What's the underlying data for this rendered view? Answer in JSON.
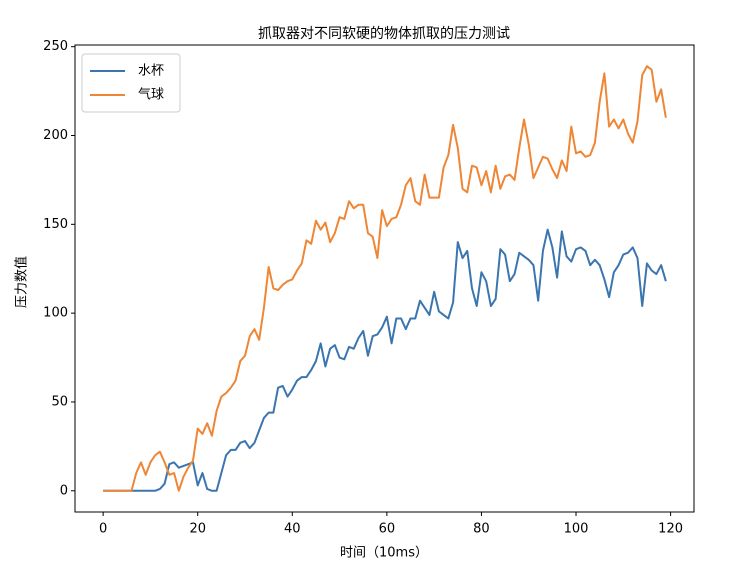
{
  "chart_data": {
    "type": "line",
    "title": "抓取器对不同软硬的物体抓取的压力测试",
    "x_label": "时间（10ms）",
    "y_label": "压力数值",
    "x": [
      0,
      1,
      2,
      3,
      4,
      5,
      6,
      7,
      8,
      9,
      10,
      11,
      12,
      13,
      14,
      15,
      16,
      17,
      18,
      19,
      20,
      21,
      22,
      23,
      24,
      25,
      26,
      27,
      28,
      29,
      30,
      31,
      32,
      33,
      34,
      35,
      36,
      37,
      38,
      39,
      40,
      41,
      42,
      43,
      44,
      45,
      46,
      47,
      48,
      49,
      50,
      51,
      52,
      53,
      54,
      55,
      56,
      57,
      58,
      59,
      60,
      61,
      62,
      63,
      64,
      65,
      66,
      67,
      68,
      69,
      70,
      71,
      72,
      73,
      74,
      75,
      76,
      77,
      78,
      79,
      80,
      81,
      82,
      83,
      84,
      85,
      86,
      87,
      88,
      89,
      90,
      91,
      92,
      93,
      94,
      95,
      96,
      97,
      98,
      99,
      100,
      101,
      102,
      103,
      104,
      105,
      106,
      107,
      108,
      109,
      110,
      111,
      112,
      113,
      114,
      115,
      116,
      117,
      118,
      119
    ],
    "series": [
      {
        "name": "水杯",
        "color": "#3b75af",
        "values": [
          0,
          0,
          0,
          0,
          0,
          0,
          0,
          0,
          0,
          0,
          0,
          0,
          1,
          4,
          15,
          16,
          13,
          14,
          15,
          16,
          3,
          10,
          1,
          0,
          0,
          10,
          20,
          23,
          23,
          27,
          28,
          24,
          27,
          34,
          41,
          44,
          44,
          58,
          59,
          53,
          57,
          62,
          64,
          64,
          68,
          73,
          83,
          70,
          80,
          82,
          75,
          74,
          81,
          80,
          86,
          90,
          76,
          87,
          88,
          92,
          98,
          83,
          97,
          97,
          91,
          97,
          97,
          107,
          103,
          99,
          112,
          101,
          99,
          97,
          106,
          140,
          131,
          135,
          114,
          104,
          123,
          118,
          104,
          108,
          136,
          133,
          118,
          122,
          134,
          132,
          130,
          127,
          107,
          135,
          147,
          137,
          120,
          146,
          132,
          129,
          136,
          137,
          135,
          127,
          130,
          127,
          119,
          109,
          123,
          127,
          133,
          134,
          137,
          131,
          104,
          128,
          124,
          122,
          127,
          118
        ]
      },
      {
        "name": "气球",
        "color": "#ee8636",
        "values": [
          0,
          0,
          0,
          0,
          0,
          0,
          0,
          10,
          16,
          9,
          16,
          20,
          22,
          16,
          9,
          10,
          0,
          8,
          13,
          17,
          35,
          32,
          38,
          31,
          45,
          53,
          55,
          58,
          62,
          73,
          76,
          87,
          91,
          85,
          103,
          126,
          114,
          113,
          116,
          118,
          119,
          124,
          128,
          141,
          139,
          152,
          147,
          151,
          140,
          145,
          154,
          153,
          163,
          159,
          161,
          161,
          145,
          143,
          131,
          158,
          149,
          153,
          154,
          161,
          172,
          176,
          163,
          161,
          178,
          165,
          165,
          165,
          182,
          189,
          206,
          193,
          170,
          168,
          183,
          182,
          172,
          180,
          168,
          183,
          170,
          177,
          178,
          175,
          193,
          209,
          195,
          176,
          182,
          188,
          187,
          181,
          176,
          186,
          180,
          205,
          190,
          191,
          188,
          189,
          196,
          219,
          235,
          205,
          209,
          204,
          209,
          201,
          196,
          208,
          234,
          239,
          237,
          219,
          226,
          210
        ]
      }
    ],
    "xlim": [
      -5.95,
      124.95
    ],
    "ylim": [
      -11.95,
      250.95
    ],
    "xticks": [
      0,
      20,
      40,
      60,
      80,
      100,
      120
    ],
    "yticks": [
      0,
      50,
      100,
      150,
      200,
      250
    ],
    "legend": "upper left"
  }
}
